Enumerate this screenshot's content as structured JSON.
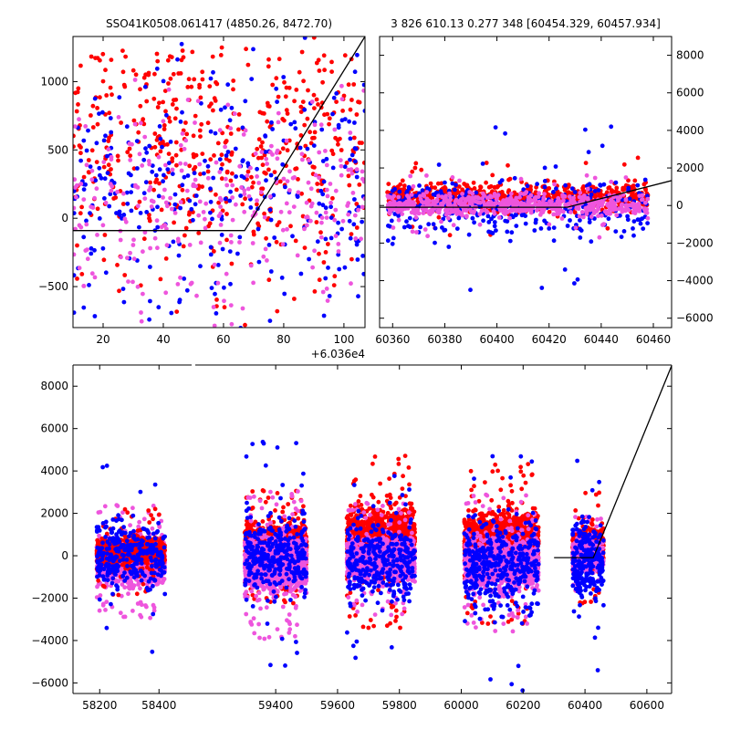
{
  "titles": {
    "left": "SSO41K0508.061417 (4850.26, 8472.70)",
    "right": "3 826 610.13 0.277 348 [60454.329, 60457.934]"
  },
  "colors": {
    "red": "#ff0000",
    "blue": "#0000ff",
    "pink": "#ee55dd",
    "line": "#000000"
  },
  "chart_data": [
    {
      "type": "scatter",
      "panel": "top-left",
      "xlim": [
        60370,
        60467
      ],
      "ylim": [
        -800,
        1330
      ],
      "x_offset_label": "+6.036e4",
      "xticks": [
        20,
        40,
        60,
        80,
        100
      ],
      "yticks": [
        -500,
        0,
        500,
        1000
      ],
      "model_line": {
        "x": [
          60370,
          60427,
          60467
        ],
        "y": [
          -90,
          -90,
          1330
        ]
      },
      "point_clouds": [
        {
          "color": "red",
          "x": [
            60370,
            60467
          ],
          "y_center": 500,
          "y_spread": 900,
          "count": 520
        },
        {
          "color": "blue",
          "x": [
            60370,
            60467
          ],
          "y_center": 150,
          "y_spread": 1000,
          "count": 330
        },
        {
          "color": "pink",
          "x": [
            60370,
            60467
          ],
          "y_center": 100,
          "y_spread": 700,
          "count": 300
        }
      ]
    },
    {
      "type": "scatter",
      "panel": "top-right",
      "xlim": [
        60355,
        60467
      ],
      "ylim": [
        -6500,
        9000
      ],
      "xticks": [
        60360,
        60380,
        60400,
        60420,
        60440,
        60460
      ],
      "yticks": [
        -6000,
        -4000,
        -2000,
        0,
        2000,
        4000,
        6000,
        8000
      ],
      "model_line": {
        "x": [
          60355,
          60427,
          60467
        ],
        "y": [
          -90,
          -90,
          1330
        ]
      },
      "point_clouds": [
        {
          "color": "red",
          "x": [
            60358,
            60458
          ],
          "y_center": 450,
          "y_spread": 700,
          "count": 700
        },
        {
          "color": "blue",
          "x": [
            60358,
            60458
          ],
          "y_center": -100,
          "y_spread": 1500,
          "count": 350
        },
        {
          "color": "pink",
          "x": [
            60358,
            60458
          ],
          "y_center": 0,
          "y_spread": 600,
          "count": 600
        }
      ]
    },
    {
      "type": "scatter",
      "panel": "bottom",
      "ylim": [
        -6500,
        9000
      ],
      "yticks": [
        -6000,
        -4000,
        -2000,
        0,
        2000,
        4000,
        6000,
        8000
      ],
      "segments": [
        {
          "xlim": [
            58110,
            58510
          ],
          "xticks": [
            58200,
            58400
          ]
        },
        {
          "xlim": [
            59140,
            60680
          ],
          "xticks": [
            59400,
            59600,
            59800,
            60000,
            60200,
            60400,
            60600
          ]
        }
      ],
      "model_line": {
        "x": [
          60300,
          60427,
          60680
        ],
        "y": [
          -90,
          -90,
          8960
        ]
      },
      "point_clouds": [
        {
          "x": [
            58190,
            58420
          ],
          "color": "pink",
          "y_center": -300,
          "y_spread": 900,
          "count": 1500
        },
        {
          "x": [
            58190,
            58420
          ],
          "color": "red",
          "y_center": 200,
          "y_spread": 700,
          "count": 700
        },
        {
          "x": [
            58190,
            58420
          ],
          "color": "blue",
          "y_center": 0,
          "y_spread": 1600,
          "count": 300
        },
        {
          "x": [
            59300,
            59500
          ],
          "color": "red",
          "y_center": 400,
          "y_spread": 900,
          "count": 1400
        },
        {
          "x": [
            59300,
            59500
          ],
          "color": "pink",
          "y_center": -400,
          "y_spread": 1200,
          "count": 1400
        },
        {
          "x": [
            59300,
            59500
          ],
          "color": "blue",
          "y_center": 0,
          "y_spread": 1800,
          "count": 350
        },
        {
          "x": [
            59630,
            59850
          ],
          "color": "red",
          "y_center": 700,
          "y_spread": 1400,
          "count": 1400
        },
        {
          "x": [
            59630,
            59850
          ],
          "color": "pink",
          "y_center": -200,
          "y_spread": 900,
          "count": 1200
        },
        {
          "x": [
            59630,
            59850
          ],
          "color": "blue",
          "y_center": -300,
          "y_spread": 1800,
          "count": 350
        },
        {
          "x": [
            60010,
            60250
          ],
          "color": "red",
          "y_center": 600,
          "y_spread": 1300,
          "count": 1500
        },
        {
          "x": [
            60010,
            60250
          ],
          "color": "pink",
          "y_center": -400,
          "y_spread": 1100,
          "count": 1200
        },
        {
          "x": [
            60010,
            60250
          ],
          "color": "blue",
          "y_center": -500,
          "y_spread": 2000,
          "count": 400
        },
        {
          "x": [
            60360,
            60460
          ],
          "color": "red",
          "y_center": 400,
          "y_spread": 900,
          "count": 500
        },
        {
          "x": [
            60360,
            60460
          ],
          "color": "pink",
          "y_center": 0,
          "y_spread": 700,
          "count": 400
        },
        {
          "x": [
            60360,
            60460
          ],
          "color": "blue",
          "y_center": -300,
          "y_spread": 1800,
          "count": 250
        }
      ]
    }
  ]
}
